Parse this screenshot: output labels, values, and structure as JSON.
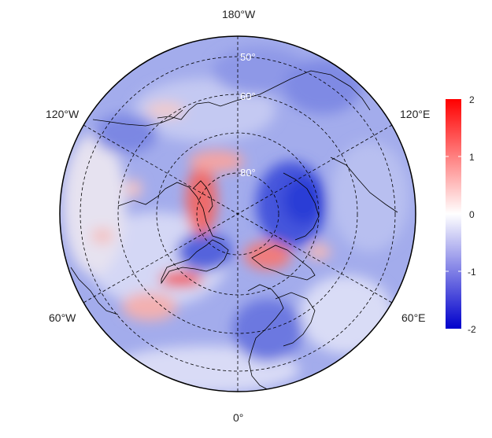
{
  "map": {
    "projection": "north-polar-stereographic",
    "longitude_labels": {
      "top": "180°W",
      "bottom": "0°",
      "upper_left": "120°W",
      "upper_right": "120°E",
      "lower_left": "60°W",
      "lower_right": "60°E"
    },
    "latitude_labels": [
      "50°",
      "60°",
      "80°"
    ],
    "colorbar": {
      "ticks": [
        "2",
        "1",
        "0",
        "-1",
        "-2"
      ],
      "min": -2,
      "max": 2,
      "colors": {
        "high": "#ff0000",
        "mid": "#ffffff",
        "low": "#0000cc"
      }
    },
    "colors": {
      "field_base": "#8f9ae8",
      "field_light": "#c9cdf3",
      "field_dark": "#3445d8",
      "positive": "#ee5a5a",
      "positive_light": "#f4b6b6",
      "coastline": "#000000",
      "grid": "#000000"
    }
  }
}
